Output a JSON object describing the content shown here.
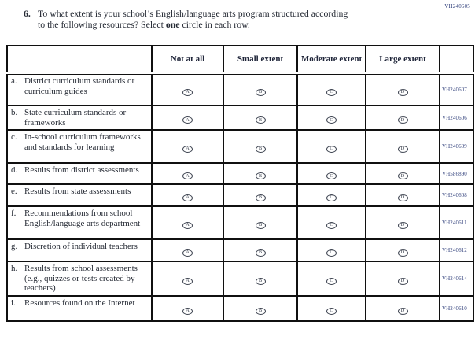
{
  "page": {
    "top_right_code": "VH240605"
  },
  "question": {
    "number": "6.",
    "line1": "To what extent is your school’s English/language arts program structured according",
    "line2_before": "to the following resources? Select ",
    "bold_word": "one",
    "line2_after": " circle in each row."
  },
  "table": {
    "columns": [
      "",
      "Not at all",
      "Small extent",
      "Moderate extent",
      "Large extent",
      ""
    ],
    "option_letters": [
      "A",
      "B",
      "C",
      "D"
    ],
    "rows": [
      {
        "letter": "a.",
        "label": "District curriculum standards or curriculum guides",
        "code": "VH240607"
      },
      {
        "letter": "b.",
        "label": "State curriculum standards or frameworks",
        "code": "VH240606"
      },
      {
        "letter": "c.",
        "label": "In-school curriculum frameworks and standards for learning",
        "code": "VH240609"
      },
      {
        "letter": "d.",
        "label": "Results from district assessments",
        "code": "VH586890"
      },
      {
        "letter": "e.",
        "label": "Results from state assessments",
        "code": "VH240608"
      },
      {
        "letter": "f.",
        "label": "Recommendations from school English/language arts department",
        "code": "VH240611"
      },
      {
        "letter": "g.",
        "label": "Discretion of individual teachers",
        "code": "VH240612"
      },
      {
        "letter": "h.",
        "label": "Results from school assessments (e.g., quizzes or tests created by teachers)",
        "code": "VH240614"
      },
      {
        "letter": "i.",
        "label": "Resources found on the Internet",
        "code": "VH240610"
      }
    ]
  },
  "colors": {
    "text": "#262b35",
    "line": "#101010",
    "code": "#35447e",
    "circle": "#3d4350"
  }
}
